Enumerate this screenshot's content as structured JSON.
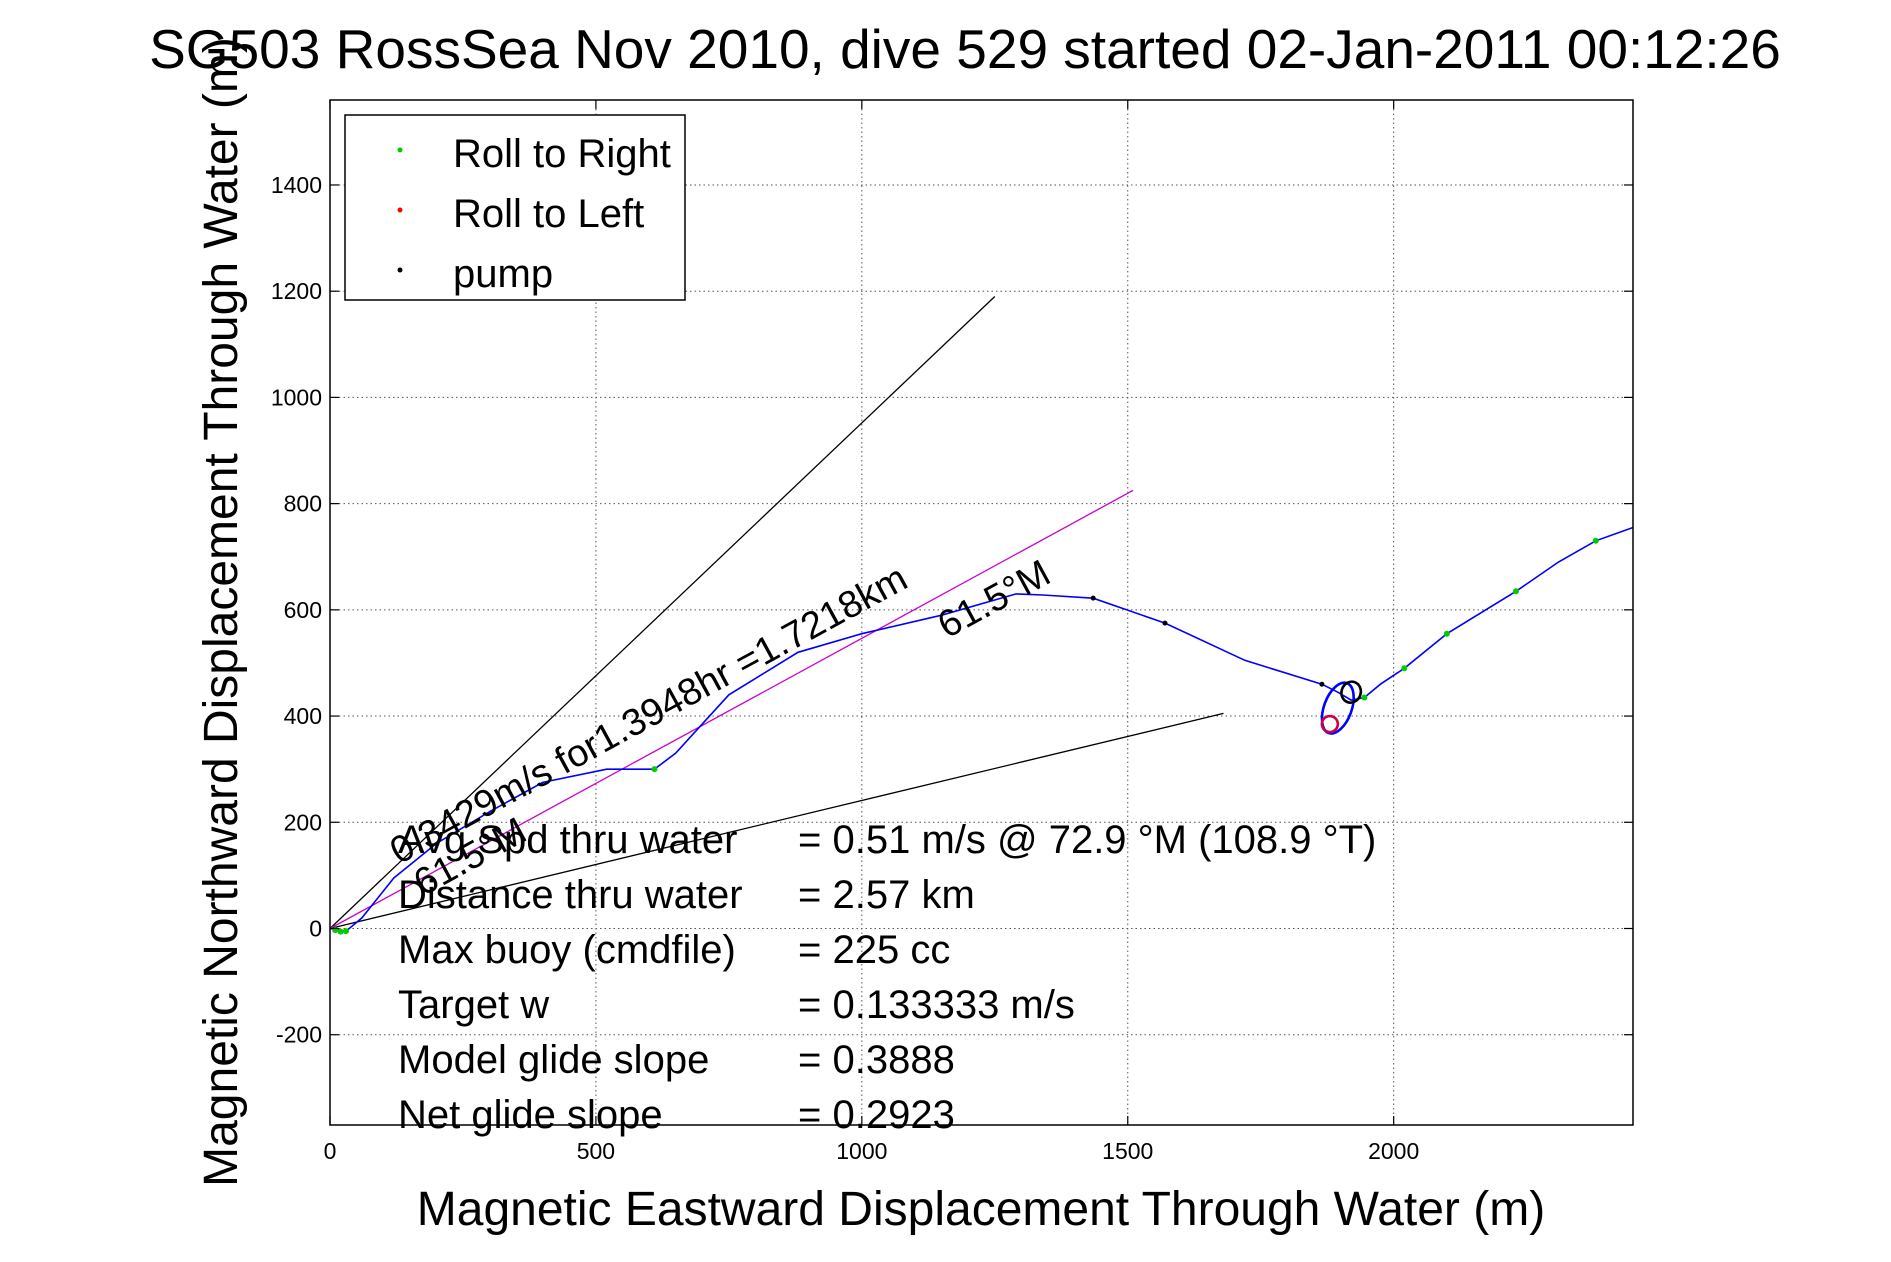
{
  "chart_data": {
    "type": "line",
    "title": "SG503 RossSea Nov 2010, dive 529 started 02-Jan-2011 00:12:26",
    "xlabel": "Magnetic Eastward Displacement Through Water (m)",
    "ylabel": "Magnetic Northward Displacement Through Water (m)",
    "xlim": [
      0,
      2450
    ],
    "ylim": [
      -370,
      1560
    ],
    "xticks": [
      0,
      500,
      1000,
      1500,
      2000
    ],
    "yticks": [
      -200,
      0,
      200,
      400,
      600,
      800,
      1000,
      1200,
      1400
    ],
    "grid": true,
    "legend": {
      "placement": "top-left",
      "entries": [
        {
          "label": "Roll to Right",
          "color": "#00cc00"
        },
        {
          "label": "Roll to Left",
          "color": "#ff0000"
        },
        {
          "label": "pump",
          "color": "#000000"
        }
      ]
    },
    "track": {
      "color": "#0000ff",
      "x": [
        0,
        30,
        60,
        120,
        200,
        300,
        400,
        520,
        610,
        650,
        750,
        880,
        1000,
        1150,
        1290,
        1340,
        1435,
        1570,
        1720,
        1865,
        1895,
        1920,
        1945,
        1975,
        2020,
        2100,
        2230,
        2310,
        2380,
        2450
      ],
      "y": [
        0,
        -5,
        20,
        95,
        160,
        220,
        275,
        300,
        300,
        330,
        440,
        520,
        555,
        590,
        630,
        628,
        622,
        575,
        505,
        460,
        445,
        430,
        435,
        460,
        490,
        555,
        635,
        690,
        730,
        755
      ]
    },
    "loops": [
      {
        "center": [
          1895,
          415
        ],
        "rx": 26,
        "ry": 50,
        "color": "#0000ff"
      },
      {
        "center": [
          1920,
          445
        ],
        "rx": 18,
        "ry": 20,
        "color": "#000000"
      },
      {
        "center": [
          1880,
          385
        ],
        "rx": 15,
        "ry": 15,
        "color": "#cc0044"
      }
    ],
    "roll_right_x": [
      10,
      20,
      30,
      610,
      1945,
      2020,
      2100,
      2230,
      2380
    ],
    "roll_right_y": [
      -3,
      -6,
      -5,
      300,
      435,
      490,
      555,
      635,
      730
    ],
    "pump_x": [
      1435,
      1570,
      1865
    ],
    "pump_y": [
      622,
      575,
      460
    ],
    "reference_lines": [
      {
        "x": [
          0,
          1250
        ],
        "y": [
          0,
          1190
        ],
        "color": "#000000"
      },
      {
        "x": [
          0,
          1680
        ],
        "y": [
          0,
          405
        ],
        "color": "#000000"
      },
      {
        "x": [
          0,
          1510
        ],
        "y": [
          0,
          825
        ],
        "color": "#cc00cc"
      }
    ],
    "annotations": [
      {
        "text": "0.3429m/s for1.3948hr =1.7218km",
        "x": 130,
        "y": 120,
        "angle": 28.6
      },
      {
        "text": "61.5°M",
        "x": 1160,
        "y": 545,
        "angle": 28.6
      },
      {
        "text": "61.5°M",
        "x": 175,
        "y": 60,
        "angle": 28.6
      }
    ],
    "stats": [
      {
        "label": "Avg Spd thru water",
        "value": "=  0.51 m/s @  72.9 °M (108.9 °T)"
      },
      {
        "label": "Distance thru water",
        "value": "=  2.57 km"
      },
      {
        "label": "Max buoy (cmdfile)",
        "value": "= 225 cc"
      },
      {
        "label": "Target w",
        "value": "= 0.133333 m/s"
      },
      {
        "label": "Model glide slope",
        "value": "= 0.3888"
      },
      {
        "label": "Net glide slope",
        "value": "= 0.2923"
      }
    ]
  }
}
